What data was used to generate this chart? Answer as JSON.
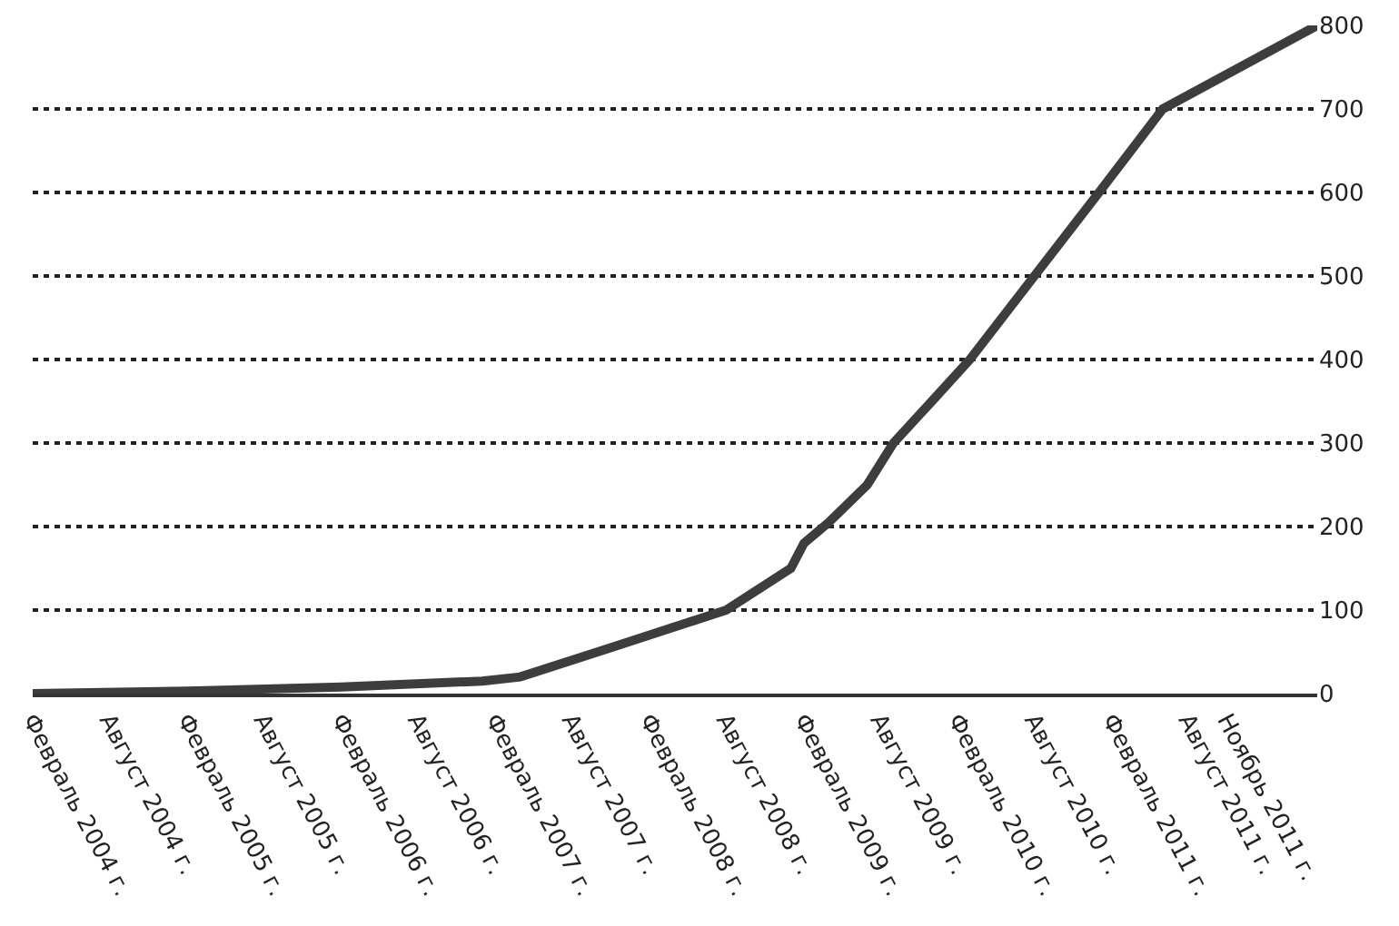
{
  "chart_data": {
    "type": "line",
    "x": [
      "2004-02",
      "2005-02",
      "2006-02",
      "2007-01",
      "2007-04",
      "2007-11",
      "2008-08",
      "2009-01",
      "2009-02",
      "2009-04",
      "2009-07",
      "2009-09",
      "2009-12",
      "2010-03",
      "2010-08",
      "2011-01",
      "2011-06",
      "2012-06"
    ],
    "series": [
      {
        "color": "#3d3d3d",
        "values": [
          0,
          3,
          8,
          15,
          20,
          55,
          100,
          150,
          180,
          205,
          250,
          300,
          350,
          400,
          500,
          600,
          700,
          800
        ]
      }
    ],
    "xlim": [
      "2004-02",
      "2012-06"
    ],
    "xticks": [
      {
        "value": "2004-02",
        "label": "Февраль 2004 г."
      },
      {
        "value": "2004-08",
        "label": "Август 2004 г."
      },
      {
        "value": "2005-02",
        "label": "Февраль 2005 г."
      },
      {
        "value": "2005-08",
        "label": "Август 2005 г."
      },
      {
        "value": "2006-02",
        "label": "Февраль 2006 г."
      },
      {
        "value": "2006-08",
        "label": "Август 2006 г."
      },
      {
        "value": "2007-02",
        "label": "Февраль 2007 г."
      },
      {
        "value": "2007-08",
        "label": "Август 2007 г."
      },
      {
        "value": "2008-02",
        "label": "Февраль 2008 г."
      },
      {
        "value": "2008-08",
        "label": "Август 2008 г."
      },
      {
        "value": "2009-02",
        "label": "Февраль 2009 г."
      },
      {
        "value": "2009-08",
        "label": "Август 2009 г."
      },
      {
        "value": "2010-02",
        "label": "Февраль 2010 г."
      },
      {
        "value": "2010-08",
        "label": "Август 2010 г."
      },
      {
        "value": "2011-02",
        "label": "Февраль 2011 г."
      },
      {
        "value": "2011-08",
        "label": "Август 2011 г."
      },
      {
        "value": "2011-11",
        "label": "Ноябрь 2011 г."
      }
    ],
    "ylim": [
      0,
      800
    ],
    "yticks": [
      0,
      100,
      200,
      300,
      400,
      500,
      600,
      700,
      800
    ],
    "grid": "y",
    "line_style": "solid"
  }
}
